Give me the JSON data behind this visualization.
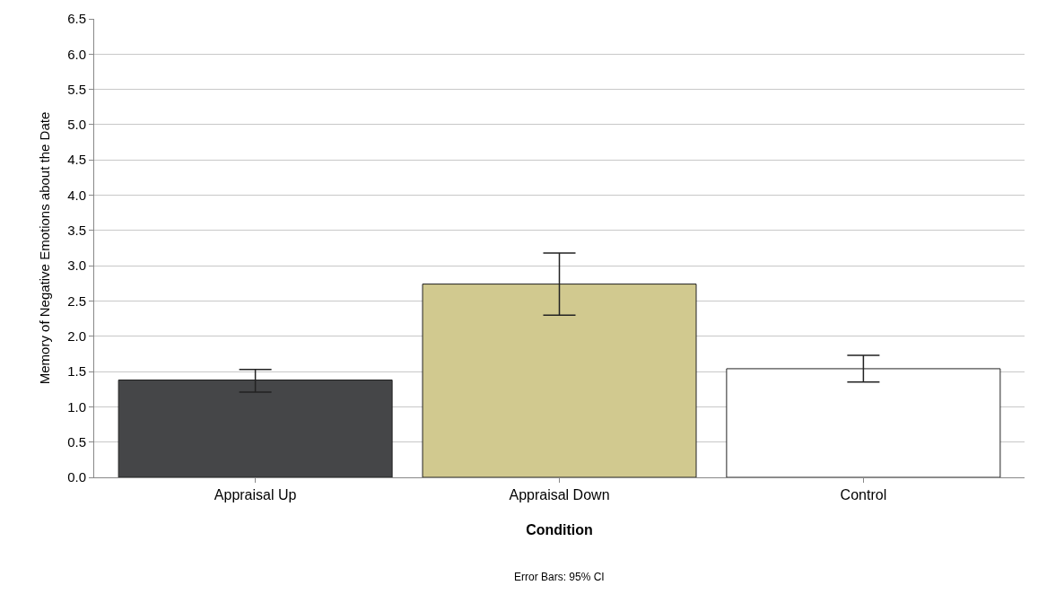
{
  "chart_data": {
    "type": "bar",
    "categories": [
      "Appraisal Up",
      "Appraisal Down",
      "Control"
    ],
    "values": [
      1.38,
      2.74,
      1.54
    ],
    "colors": [
      "#454648",
      "#d1c98f",
      "#ffffff"
    ],
    "errors": [
      [
        1.21,
        1.53
      ],
      [
        2.3,
        3.18
      ],
      [
        1.35,
        1.73
      ]
    ],
    "xlabel": "Condition",
    "ylabel": "Memory of Negative Emotions about the Date",
    "ylim": [
      0,
      6.5
    ],
    "yticks": [
      {
        "value": 0,
        "label": "0.0"
      },
      0.5,
      {
        "value": 1,
        "label": "1.0"
      },
      1.5,
      {
        "value": 2,
        "label": "2.0"
      },
      2.5,
      {
        "value": 3,
        "label": "3.0"
      },
      3.5,
      {
        "value": 4,
        "label": "4.0"
      },
      4.5,
      {
        "value": 5,
        "label": "5.0"
      },
      5.5,
      {
        "value": 6,
        "label": "6.0"
      },
      6.5
    ],
    "grid": "y",
    "annotations": [
      "Error Bars: 95% CI"
    ]
  }
}
